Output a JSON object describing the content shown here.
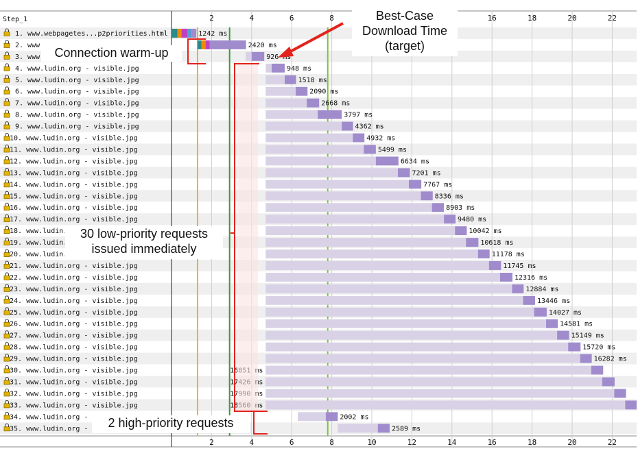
{
  "step_label": "Step_1",
  "annotations": {
    "best_case_line1": "Best-Case",
    "best_case_line2": "Download Time",
    "best_case_line3": "(target)",
    "warmup": "Connection warm-up",
    "low_priority_line1": "30 low-priority requests",
    "low_priority_line2": "issued immediately",
    "high_priority": "2 high-priority requests"
  },
  "colors": {
    "bar_wait": "#d9d2e6",
    "bar_download": "#a08ccc",
    "row_shade": "#efefef",
    "grid": "#cfcfcf",
    "start_render": "#f0b400",
    "dom_content": "#3c9a3c",
    "onload": "#7fc340",
    "annotation": "#e3221c",
    "lock": "#e4b400",
    "dns": "#2c8a8a",
    "connect": "#f08a00",
    "ssl": "#c040c0",
    "ttfb": "#5b9bd5"
  },
  "chart_data": {
    "type": "waterfall",
    "x_unit": "s",
    "xlim": [
      0,
      23.7
    ],
    "x_ticks": [
      2,
      4,
      6,
      8,
      10,
      12,
      14,
      16,
      18,
      20,
      22
    ],
    "vertical_markers": [
      {
        "name": "start-render",
        "x": 1.3
      },
      {
        "name": "dom-content",
        "x": 2.9
      },
      {
        "name": "onload",
        "x": 7.8
      }
    ],
    "rows": [
      {
        "n": "1.",
        "url": "www.webpagetes...p2priorities.html",
        "label": "1242 ms",
        "start": 0.0,
        "dl_start": 1.0,
        "end": 1.24,
        "label_side": "right",
        "phases": [
          {
            "t": "dns",
            "from": 0.0,
            "to": 0.3
          },
          {
            "t": "connect",
            "from": 0.3,
            "to": 0.5
          },
          {
            "t": "ssl",
            "from": 0.5,
            "to": 0.8
          },
          {
            "t": "ttfb",
            "from": 0.8,
            "to": 1.0
          }
        ],
        "overflow": false
      },
      {
        "n": "2.",
        "url": "www...",
        "label": "2420 ms",
        "start": 1.3,
        "dl_start": 1.9,
        "end": 3.72,
        "label_side": "right",
        "phases": [
          {
            "t": "dns",
            "from": 1.3,
            "to": 1.5
          },
          {
            "t": "connect",
            "from": 1.5,
            "to": 1.7
          },
          {
            "t": "ssl",
            "from": 1.7,
            "to": 1.9
          }
        ],
        "overflow": false
      },
      {
        "n": "3.",
        "url": "www...",
        "label": "926 ms",
        "start": 3.7,
        "dl_start": 4.0,
        "end": 4.63,
        "label_side": "right",
        "phases": [],
        "overflow": false
      },
      {
        "n": "4.",
        "url": "www.ludin.org - visible.jpg",
        "label": "948 ms",
        "start": 4.7,
        "dl_start": 5.0,
        "end": 5.65,
        "label_side": "right",
        "phases": [],
        "overflow": false
      },
      {
        "n": "5.",
        "url": "www.ludin.org - visible.jpg",
        "label": "1518 ms",
        "start": 4.7,
        "dl_start": 5.65,
        "end": 6.22,
        "label_side": "right",
        "phases": [],
        "overflow": false
      },
      {
        "n": "6.",
        "url": "www.ludin.org - visible.jpg",
        "label": "2090 ms",
        "start": 4.7,
        "dl_start": 6.2,
        "end": 6.79,
        "label_side": "right",
        "phases": [],
        "overflow": false
      },
      {
        "n": "7.",
        "url": "www.ludin.org - visible.jpg",
        "label": "2668 ms",
        "start": 4.7,
        "dl_start": 6.75,
        "end": 7.37,
        "label_side": "right",
        "phases": [],
        "overflow": false
      },
      {
        "n": "8.",
        "url": "www.ludin.org - visible.jpg",
        "label": "3797 ms",
        "start": 4.7,
        "dl_start": 7.3,
        "end": 8.5,
        "label_side": "right",
        "phases": [],
        "overflow": false
      },
      {
        "n": "9.",
        "url": "www.ludin.org - visible.jpg",
        "label": "4362 ms",
        "start": 4.7,
        "dl_start": 8.5,
        "end": 9.06,
        "label_side": "right",
        "phases": [],
        "overflow": false
      },
      {
        "n": "10.",
        "url": "www.ludin.org - visible.jpg",
        "label": "4932 ms",
        "start": 4.7,
        "dl_start": 9.05,
        "end": 9.63,
        "label_side": "right",
        "phases": [],
        "overflow": false
      },
      {
        "n": "11.",
        "url": "www.ludin.org - visible.jpg",
        "label": "5499 ms",
        "start": 4.7,
        "dl_start": 9.6,
        "end": 10.2,
        "label_side": "right",
        "phases": [],
        "overflow": false
      },
      {
        "n": "12.",
        "url": "www.ludin.org - visible.jpg",
        "label": "6634 ms",
        "start": 4.7,
        "dl_start": 10.2,
        "end": 11.33,
        "label_side": "right",
        "phases": [],
        "overflow": false
      },
      {
        "n": "13.",
        "url": "www.ludin.org - visible.jpg",
        "label": "7201 ms",
        "start": 4.7,
        "dl_start": 11.3,
        "end": 11.9,
        "label_side": "right",
        "phases": [],
        "overflow": false
      },
      {
        "n": "14.",
        "url": "www.ludin.org - visible.jpg",
        "label": "7767 ms",
        "start": 4.7,
        "dl_start": 11.85,
        "end": 12.47,
        "label_side": "right",
        "phases": [],
        "overflow": false
      },
      {
        "n": "15.",
        "url": "www.ludin.org - visible.jpg",
        "label": "8336 ms",
        "start": 4.7,
        "dl_start": 12.45,
        "end": 13.04,
        "label_side": "right",
        "phases": [],
        "overflow": false
      },
      {
        "n": "16.",
        "url": "www.ludin.org - visible.jpg",
        "label": "8903 ms",
        "start": 4.7,
        "dl_start": 13.0,
        "end": 13.6,
        "label_side": "right",
        "phases": [],
        "overflow": false
      },
      {
        "n": "17.",
        "url": "www.ludin.org - visible.jpg",
        "label": "9480 ms",
        "start": 4.7,
        "dl_start": 13.6,
        "end": 14.18,
        "label_side": "right",
        "phases": [],
        "overflow": false
      },
      {
        "n": "18.",
        "url": "www.ludin...",
        "label": "10042 ms",
        "start": 4.7,
        "dl_start": 14.15,
        "end": 14.74,
        "label_side": "right",
        "phases": [],
        "overflow": false
      },
      {
        "n": "19.",
        "url": "www.ludin...",
        "label": "10618 ms",
        "start": 4.7,
        "dl_start": 14.7,
        "end": 15.32,
        "label_side": "right",
        "phases": [],
        "overflow": false
      },
      {
        "n": "20.",
        "url": "www.ludin.o...",
        "label": "11178 ms",
        "start": 4.7,
        "dl_start": 15.3,
        "end": 15.88,
        "label_side": "right",
        "phases": [],
        "overflow": false
      },
      {
        "n": "21.",
        "url": "www.ludin.org - visible.jpg",
        "label": "11745 ms",
        "start": 4.7,
        "dl_start": 15.85,
        "end": 16.45,
        "label_side": "right",
        "phases": [],
        "overflow": false
      },
      {
        "n": "22.",
        "url": "www.ludin.org - visible.jpg",
        "label": "12316 ms",
        "start": 4.7,
        "dl_start": 16.4,
        "end": 17.02,
        "label_side": "right",
        "phases": [],
        "overflow": false
      },
      {
        "n": "23.",
        "url": "www.ludin.org - visible.jpg",
        "label": "12884 ms",
        "start": 4.7,
        "dl_start": 17.0,
        "end": 17.58,
        "label_side": "right",
        "phases": [],
        "overflow": false
      },
      {
        "n": "24.",
        "url": "www.ludin.org - visible.jpg",
        "label": "13446 ms",
        "start": 4.7,
        "dl_start": 17.55,
        "end": 18.15,
        "label_side": "right",
        "phases": [],
        "overflow": false
      },
      {
        "n": "25.",
        "url": "www.ludin.org - visible.jpg",
        "label": "14027 ms",
        "start": 4.7,
        "dl_start": 18.1,
        "end": 18.73,
        "label_side": "right",
        "phases": [],
        "overflow": false
      },
      {
        "n": "26.",
        "url": "www.ludin.org - visible.jpg",
        "label": "14581 ms",
        "start": 4.7,
        "dl_start": 18.7,
        "end": 19.28,
        "label_side": "right",
        "phases": [],
        "overflow": false
      },
      {
        "n": "27.",
        "url": "www.ludin.org - visible.jpg",
        "label": "15149 ms",
        "start": 4.7,
        "dl_start": 19.25,
        "end": 19.85,
        "label_side": "right",
        "phases": [],
        "overflow": false
      },
      {
        "n": "28.",
        "url": "www.ludin.org - visible.jpg",
        "label": "15720 ms",
        "start": 4.7,
        "dl_start": 19.8,
        "end": 20.42,
        "label_side": "right",
        "phases": [],
        "overflow": false
      },
      {
        "n": "29.",
        "url": "www.ludin.org - visible.jpg",
        "label": "16282 ms",
        "start": 4.7,
        "dl_start": 20.4,
        "end": 20.98,
        "label_side": "right",
        "phases": [],
        "overflow": false
      },
      {
        "n": "30.",
        "url": "www.ludin.org - visible.jpg",
        "label": "16851 ms",
        "start": 4.7,
        "dl_start": 20.95,
        "end": 21.55,
        "label_side": "left",
        "phases": [],
        "overflow": false
      },
      {
        "n": "31.",
        "url": "www.ludin.org - visible.jpg",
        "label": "17426 ms",
        "start": 4.7,
        "dl_start": 21.5,
        "end": 22.12,
        "label_side": "left",
        "phases": [],
        "overflow": false
      },
      {
        "n": "32.",
        "url": "www.ludin.org - visible.jpg",
        "label": "17990 ms",
        "start": 4.7,
        "dl_start": 22.1,
        "end": 22.69,
        "label_side": "left",
        "phases": [],
        "overflow": false
      },
      {
        "n": "33.",
        "url": "www.ludin.org - visible.jpg",
        "label": "18560 ms",
        "start": 4.7,
        "dl_start": 22.65,
        "end": 23.7,
        "label_side": "left",
        "phases": [],
        "overflow": true
      },
      {
        "n": "34.",
        "url": "www.ludin.org -",
        "label": "2002 ms",
        "start": 6.3,
        "dl_start": 7.7,
        "end": 8.3,
        "label_side": "right",
        "phases": [],
        "overflow": false
      },
      {
        "n": "35.",
        "url": "www.ludin.org -",
        "label": "2589 ms",
        "start": 8.3,
        "dl_start": 10.3,
        "end": 10.89,
        "label_side": "right",
        "phases": [],
        "overflow": false
      }
    ]
  }
}
